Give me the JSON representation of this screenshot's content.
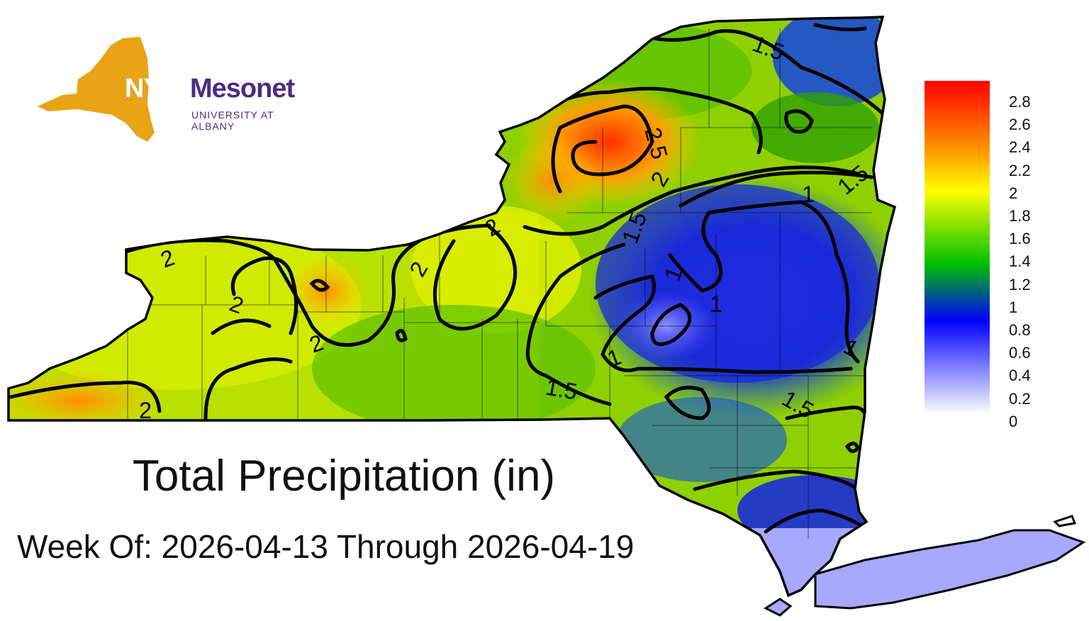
{
  "logo": {
    "abbr": "NYS",
    "name": "Mesonet",
    "subtitle": "UNIVERSITY AT ALBANY",
    "colors": {
      "state": "#e8a317",
      "text": "#4b2c82"
    }
  },
  "map": {
    "title": "Total Precipitation (in)",
    "subtitle": "Week Of: 2026-04-13 Through 2026-04-19",
    "contour_labels": [
      "2",
      "2",
      "2",
      "2",
      "2",
      "2",
      "2",
      "1.5",
      "1.5",
      "1.5",
      "1.5",
      "1.5",
      "2.5",
      "1",
      "1",
      "1",
      "1",
      "1"
    ]
  },
  "colorbar": {
    "ticks": [
      "2.8",
      "2.6",
      "2.4",
      "2.2",
      "2",
      "1.8",
      "1.6",
      "1.4",
      "1.2",
      "1",
      "0.8",
      "0.6",
      "0.4",
      "0.2",
      "0"
    ],
    "stops": [
      "#ff0000",
      "#ff9000",
      "#ffff00",
      "#00c000",
      "#0000ff",
      "#ffffff"
    ]
  }
}
